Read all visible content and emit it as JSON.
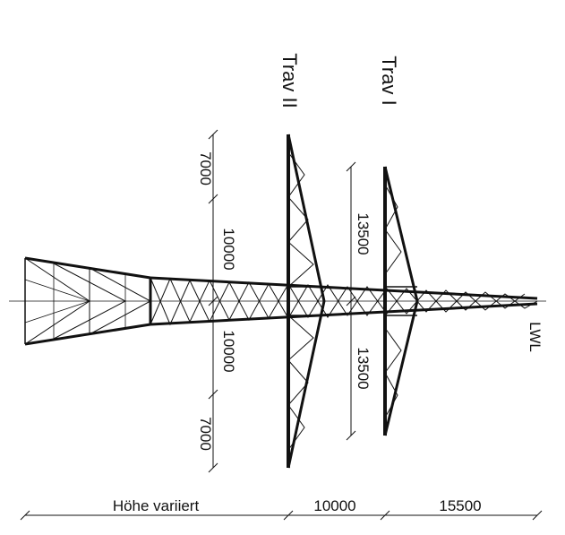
{
  "drawing": {
    "crossarm_labels": {
      "upper": "Trav I",
      "lower": "Trav II"
    },
    "top_label": "LWL",
    "crossarm_dimensions": {
      "trav_i": {
        "left": "13500",
        "right": "13500"
      },
      "trav_ii": {
        "left_outer": "7000",
        "left_inner": "10000",
        "right_inner": "10000",
        "right_outer": "7000"
      }
    },
    "height_dimensions": {
      "bottom": "Höhe variiert",
      "middle": "10000",
      "top": "15500"
    }
  },
  "colors": {
    "line": "#111111",
    "background": "#ffffff"
  }
}
